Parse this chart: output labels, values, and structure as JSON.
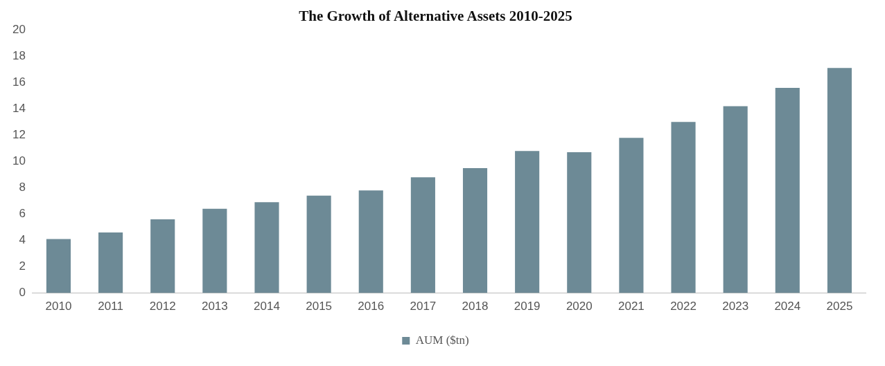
{
  "chart_data": {
    "type": "bar",
    "title": "The Growth of Alternative Assets 2010-2025",
    "categories": [
      "2010",
      "2011",
      "2012",
      "2013",
      "2014",
      "2015",
      "2016",
      "2017",
      "2018",
      "2019",
      "2020",
      "2021",
      "2022",
      "2023",
      "2024",
      "2025"
    ],
    "series": [
      {
        "name": "AUM ($tn)",
        "color": "#6d8a96",
        "values": [
          4.1,
          4.6,
          5.6,
          6.4,
          6.9,
          7.4,
          7.8,
          8.8,
          9.5,
          10.8,
          10.7,
          11.8,
          13.0,
          14.2,
          15.6,
          17.1
        ]
      }
    ],
    "ylim": [
      0,
      20
    ],
    "yticks": [
      0,
      2,
      4,
      6,
      8,
      10,
      12,
      14,
      16,
      18,
      20
    ],
    "grid": false,
    "legend": "bottom"
  }
}
